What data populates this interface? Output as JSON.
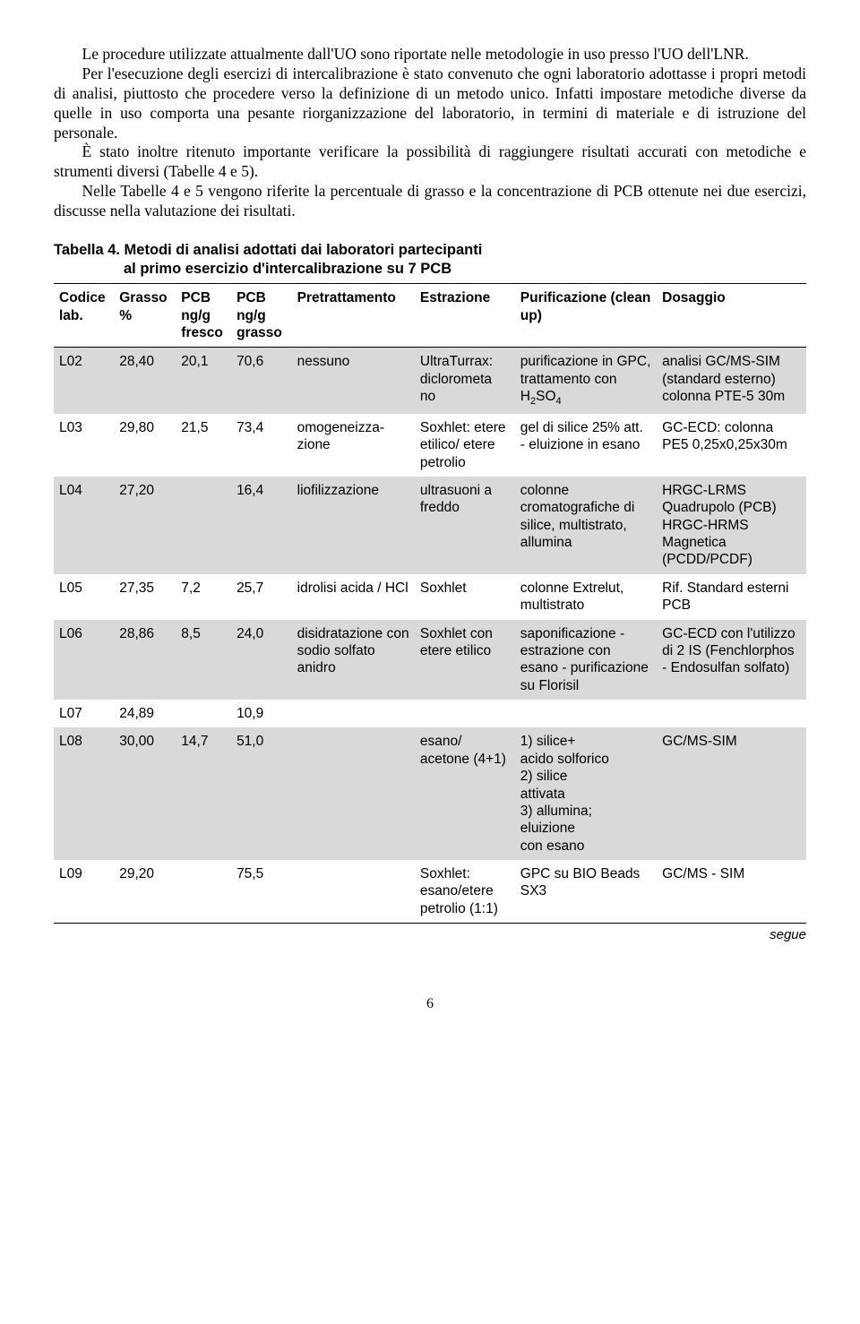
{
  "paragraphs": {
    "p1": "Le procedure utilizzate attualmente dall'UO sono riportate nelle metodologie in uso presso l'UO dell'LNR.",
    "p2": "Per l'esecuzione degli esercizi di intercalibrazione è stato convenuto che ogni laboratorio adottasse i propri metodi di analisi, piuttosto che procedere verso la definizione di un metodo unico. Infatti impostare metodiche diverse da quelle in uso comporta una pesante riorganizzazione del laboratorio, in termini di materiale e di istruzione del personale.",
    "p3": "È stato inoltre ritenuto importante verificare la possibilità di raggiungere risultati accurati con metodiche e strumenti diversi (Tabelle 4 e 5).",
    "p4": "Nelle Tabelle 4 e 5 vengono riferite la percentuale di grasso e la concentrazione di PCB ottenute nei due esercizi, discusse nella valutazione dei risultati."
  },
  "table_caption_line1": "Tabella 4. Metodi di analisi adottati dai laboratori partecipanti",
  "table_caption_line2": "al primo esercizio d'intercalibrazione su 7 PCB",
  "headers": {
    "h1": "Codice lab.",
    "h2": "Grasso %",
    "h3": "PCB ng/g fresco",
    "h4": "PCB ng/g grasso",
    "h5": "Pretrattamento",
    "h6": "Estrazione",
    "h7": "Purificazione (clean up)",
    "h8": "Dosaggio"
  },
  "rows": [
    {
      "c1": "L02",
      "c2": "28,40",
      "c3": "20,1",
      "c4": "70,6",
      "c5": "nessuno",
      "c6": "UltraTurrax: diclorometa no",
      "c7": "purificazione in GPC, trattamento con H₂SO₄",
      "c8": "analisi GC/MS-SIM (standard esterno) colonna PTE-5 30m"
    },
    {
      "c1": "L03",
      "c2": "29,80",
      "c3": "21,5",
      "c4": "73,4",
      "c5": "omogeneizza-zione",
      "c6": "Soxhlet: etere etilico/ etere petrolio",
      "c7": "gel di silice 25% att. - eluizione in esano",
      "c8": "GC-ECD: colonna PE5 0,25x0,25x30m"
    },
    {
      "c1": "L04",
      "c2": "27,20",
      "c3": "",
      "c4": "16,4",
      "c5": "liofilizzazione",
      "c6": "ultrasuoni a freddo",
      "c7": "colonne cromatografiche di silice, multistrato, allumina",
      "c8": "HRGC-LRMS Quadrupolo (PCB) HRGC-HRMS Magnetica (PCDD/PCDF)"
    },
    {
      "c1": "L05",
      "c2": "27,35",
      "c3": "7,2",
      "c4": "25,7",
      "c5": "idrolisi acida / HCl",
      "c6": "Soxhlet",
      "c7": "colonne Extrelut, multistrato",
      "c8": "Rif. Standard esterni PCB"
    },
    {
      "c1": "L06",
      "c2": "28,86",
      "c3": "8,5",
      "c4": "24,0",
      "c5": "disidratazione con sodio solfato anidro",
      "c6": "Soxhlet con etere etilico",
      "c7": "saponificazione - estrazione con esano - purificazione su Florisil",
      "c8": "GC-ECD con l'utilizzo di 2 IS (Fenchlorphos - Endosulfan solfato)"
    },
    {
      "c1": "L07",
      "c2": "24,89",
      "c3": "",
      "c4": "10,9",
      "c5": "",
      "c6": "",
      "c7": "",
      "c8": ""
    },
    {
      "c1": "L08",
      "c2": "30,00",
      "c3": "14,7",
      "c4": "51,0",
      "c5": "",
      "c6": "esano/ acetone (4+1)",
      "c7": "1) silice+\n    acido solforico\n2) silice\n    attivata\n3) allumina;\n    eluizione\n    con esano",
      "c8": "GC/MS-SIM"
    },
    {
      "c1": "L09",
      "c2": "29,20",
      "c3": "",
      "c4": "75,5",
      "c5": "",
      "c6": "Soxhlet: esano/etere petrolio (1:1)",
      "c7": "GPC su BIO Beads SX3",
      "c8": "GC/MS - SIM"
    }
  ],
  "shade_pattern": [
    "shade",
    "",
    "shade",
    "",
    "shade",
    "",
    "shade",
    ""
  ],
  "segue": "segue",
  "pagenum": "6"
}
